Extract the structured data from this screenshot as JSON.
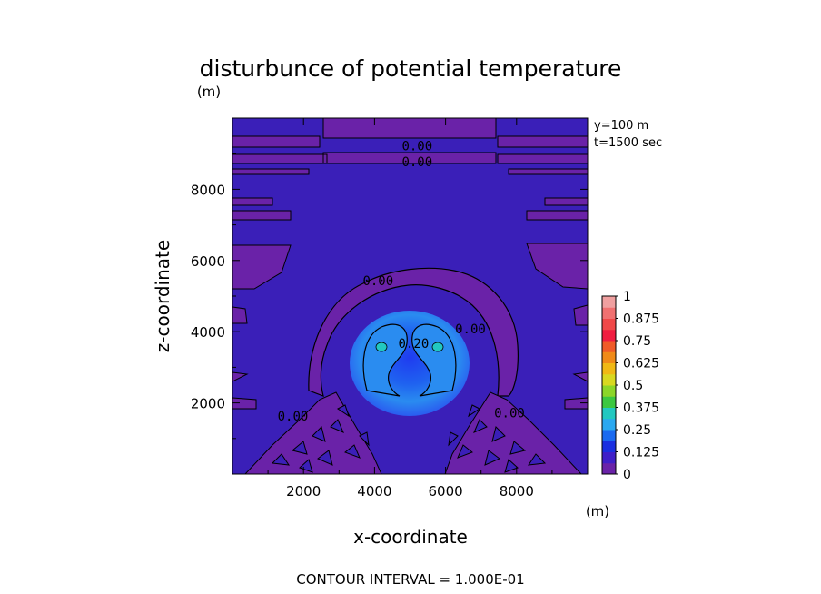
{
  "chart_data": {
    "type": "heatmap",
    "title": "disturbunce of potential temperature",
    "xlabel": "x-coordinate",
    "ylabel": "z-coordinate",
    "x_unit": "(m)",
    "y_unit": "(m)",
    "xlim": [
      0,
      10000
    ],
    "ylim": [
      0,
      10000
    ],
    "x_ticks": [
      2000,
      4000,
      6000,
      8000
    ],
    "y_ticks": [
      2000,
      4000,
      6000,
      8000
    ],
    "annotations": {
      "y_slice": "y=100 m",
      "time": "t=1500 sec",
      "contour_interval": "CONTOUR INTERVAL = 1.000E-01"
    },
    "contour_labels": [
      {
        "text": "0.00",
        "x": 5200,
        "z": 9100
      },
      {
        "text": "0.00",
        "x": 5200,
        "z": 8650
      },
      {
        "text": "0.00",
        "x": 4100,
        "z": 5300
      },
      {
        "text": "0.00",
        "x": 6700,
        "z": 3950
      },
      {
        "text": "0.20",
        "x": 5100,
        "z": 3550
      },
      {
        "text": "0.00",
        "x": 1700,
        "z": 1500
      },
      {
        "text": "0.00",
        "x": 7800,
        "z": 1600
      }
    ],
    "colorbar": {
      "levels": [
        0,
        0.125,
        0.25,
        0.375,
        0.5,
        0.625,
        0.75,
        0.875,
        1
      ],
      "labels": [
        "0",
        "0.125",
        "0.25",
        "0.375",
        "0.5",
        "0.625",
        "0.75",
        "0.875",
        "1"
      ],
      "colors": [
        "#6a22a8",
        "#3f1fc8",
        "#1a2fe0",
        "#1a6af0",
        "#2aa8f0",
        "#22c8c0",
        "#3cc840",
        "#8cd628",
        "#d8d820",
        "#f0b814",
        "#f08a18",
        "#f05a28",
        "#f01c40",
        "#f04848",
        "#f07070",
        "#f0a0a0"
      ]
    }
  }
}
